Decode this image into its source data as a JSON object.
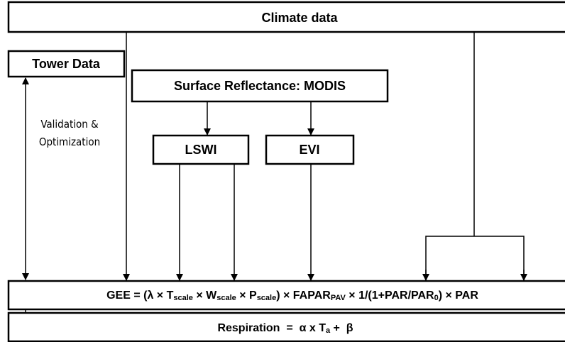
{
  "nodes": [
    {
      "label": "Climate data"
    },
    {
      "label": "Tower Data"
    },
    {
      "label": "Surface Reflectance: MODIS"
    },
    {
      "label": "LSWI"
    },
    {
      "label": "EVI"
    }
  ],
  "annotation": [
    "Validation &",
    "Optimization"
  ],
  "equations": {
    "gee": [
      {
        "text": "GEE = (λ × T",
        "subscript": false
      },
      {
        "text": "scale",
        "subscript": true
      },
      {
        "text": " × W",
        "subscript": false
      },
      {
        "text": "scale",
        "subscript": true
      },
      {
        "text": " × P",
        "subscript": false
      },
      {
        "text": "scale",
        "subscript": true
      },
      {
        "text": ") × FAPAR",
        "subscript": false
      },
      {
        "text": "PAV",
        "subscript": true
      },
      {
        "text": " × 1/(1+PAR/PAR",
        "subscript": false
      },
      {
        "text": "0",
        "subscript": true
      },
      {
        "text": ") × PAR",
        "subscript": false
      }
    ],
    "respiration": [
      {
        "text": "Respiration  =  α x T",
        "subscript": false
      },
      {
        "text": "a",
        "subscript": true
      },
      {
        "text": " +  β",
        "subscript": false
      }
    ]
  }
}
